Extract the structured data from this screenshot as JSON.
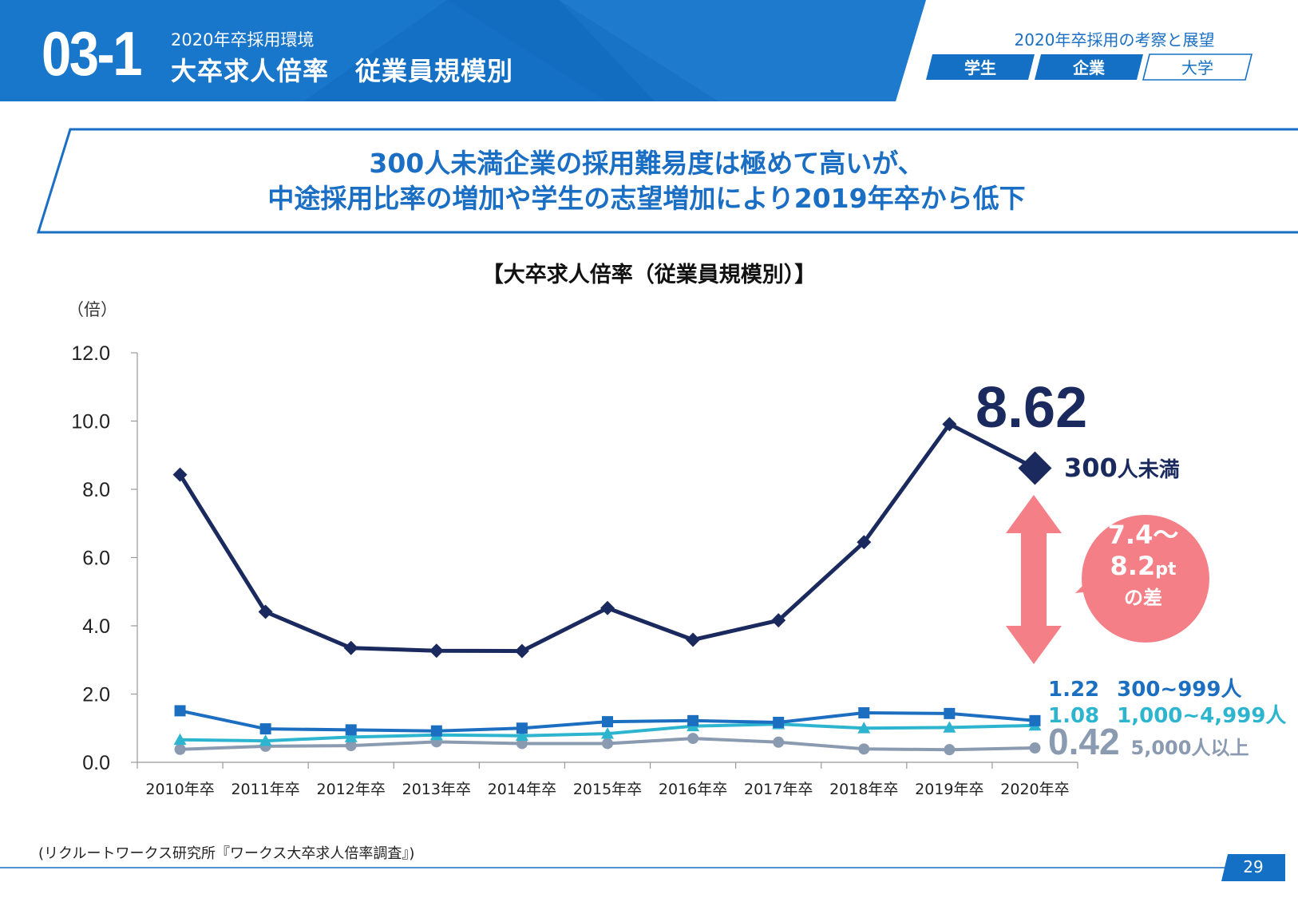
{
  "header": {
    "section_number": "03-1",
    "subtitle": "2020年卒採用環境",
    "title": "大卒求人倍率　従業員規模別",
    "right_title": "2020年卒採用の考察と展望",
    "tabs": [
      {
        "label": "学生",
        "active": true
      },
      {
        "label": "企業",
        "active": true
      },
      {
        "label": "大学",
        "active": false
      }
    ],
    "colors": {
      "brand": "#1a6fc4",
      "brand_dark": "#0f5fb3"
    }
  },
  "banner": {
    "line1": "300人未満企業の採用難易度は極めて高いが、",
    "line2": "中途採用比率の増加や学生の志望増加により2019年卒から低下"
  },
  "callouts": {
    "highlight_value": "8.62",
    "highlight_label_num": "300",
    "highlight_label_text": "人未満",
    "gap_line1": "7.4～",
    "gap_line2_num": "8.2",
    "gap_line2_unit": "pt",
    "gap_line3": "の差",
    "series_labels": [
      {
        "value": "1.22",
        "label": "300~999人",
        "color": "#1c6fc0"
      },
      {
        "value": "1.08",
        "label": "1,000~4,999人",
        "color": "#2db5d0"
      },
      {
        "value": "0.42",
        "label": "5,000人以上",
        "color": "#8a9ab0"
      }
    ],
    "arrow_color": "#f47f86"
  },
  "chart_data": {
    "type": "line",
    "title": "【大卒求人倍率（従業員規模別）】",
    "ylabel": "（倍）",
    "xlabel": "",
    "categories": [
      "2010年卒",
      "2011年卒",
      "2012年卒",
      "2013年卒",
      "2014年卒",
      "2015年卒",
      "2016年卒",
      "2017年卒",
      "2018年卒",
      "2019年卒",
      "2020年卒"
    ],
    "ylim": [
      0,
      12
    ],
    "yticks": [
      "0.0",
      "2.0",
      "4.0",
      "6.0",
      "8.0",
      "10.0",
      "12.0"
    ],
    "grid": false,
    "series": [
      {
        "name": "300人未満",
        "color": "#1b2a5e",
        "marker": "diamond",
        "values": [
          8.43,
          4.41,
          3.35,
          3.27,
          3.26,
          4.52,
          3.59,
          4.16,
          6.45,
          9.91,
          8.62
        ]
      },
      {
        "name": "300~999人",
        "color": "#1c6fc0",
        "marker": "square",
        "values": [
          1.51,
          0.98,
          0.95,
          0.92,
          1.0,
          1.19,
          1.22,
          1.17,
          1.45,
          1.43,
          1.22
        ]
      },
      {
        "name": "1,000~4,999人",
        "color": "#2db5d0",
        "marker": "triangle",
        "values": [
          0.66,
          0.63,
          0.74,
          0.8,
          0.78,
          0.84,
          1.06,
          1.12,
          1.0,
          1.02,
          1.08
        ]
      },
      {
        "name": "5,000人以上",
        "color": "#8a9ab0",
        "marker": "circle",
        "values": [
          0.38,
          0.47,
          0.49,
          0.6,
          0.55,
          0.55,
          0.7,
          0.59,
          0.39,
          0.37,
          0.42
        ]
      }
    ]
  },
  "footer": {
    "source": "(リクルートワークス研究所『ワークス大卒求人倍率調査』)",
    "page_number": "29"
  }
}
